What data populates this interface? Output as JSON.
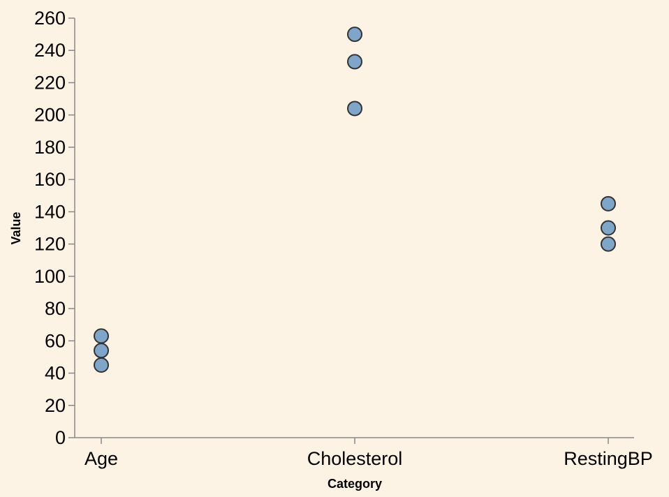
{
  "colors": {
    "background": "#fdf3e4",
    "point_fill": "#7fa5c8",
    "point_stroke": "#333333",
    "axis": "#888888"
  },
  "chart_data": {
    "type": "scatter",
    "xlabel": "Category",
    "ylabel": "Value",
    "categories": [
      "Age",
      "Cholesterol",
      "RestingBP"
    ],
    "ylim": [
      0,
      260
    ],
    "yticks": [
      0,
      20,
      40,
      60,
      80,
      100,
      120,
      140,
      160,
      180,
      200,
      220,
      240,
      260
    ],
    "grid": false,
    "points": [
      {
        "category": "Age",
        "value": 63
      },
      {
        "category": "Age",
        "value": 54
      },
      {
        "category": "Age",
        "value": 45
      },
      {
        "category": "Cholesterol",
        "value": 250
      },
      {
        "category": "Cholesterol",
        "value": 233
      },
      {
        "category": "Cholesterol",
        "value": 204
      },
      {
        "category": "RestingBP",
        "value": 145
      },
      {
        "category": "RestingBP",
        "value": 130
      },
      {
        "category": "RestingBP",
        "value": 120
      }
    ]
  }
}
